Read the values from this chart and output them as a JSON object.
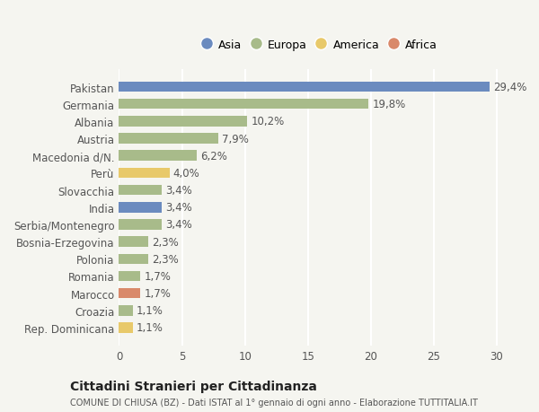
{
  "categories": [
    "Pakistan",
    "Germania",
    "Albania",
    "Austria",
    "Macedonia d/N.",
    "Perù",
    "Slovacchia",
    "India",
    "Serbia/Montenegro",
    "Bosnia-Erzegovina",
    "Polonia",
    "Romania",
    "Marocco",
    "Croazia",
    "Rep. Dominicana"
  ],
  "values": [
    29.4,
    19.8,
    10.2,
    7.9,
    6.2,
    4.0,
    3.4,
    3.4,
    3.4,
    2.3,
    2.3,
    1.7,
    1.7,
    1.1,
    1.1
  ],
  "labels": [
    "29,4%",
    "19,8%",
    "10,2%",
    "7,9%",
    "6,2%",
    "4,0%",
    "3,4%",
    "3,4%",
    "3,4%",
    "2,3%",
    "2,3%",
    "1,7%",
    "1,7%",
    "1,1%",
    "1,1%"
  ],
  "continents": [
    "Asia",
    "Europa",
    "Europa",
    "Europa",
    "Europa",
    "America",
    "Europa",
    "Asia",
    "Europa",
    "Europa",
    "Europa",
    "Europa",
    "Africa",
    "Europa",
    "America"
  ],
  "colors": {
    "Asia": "#6b8bbf",
    "Europa": "#a8bb8a",
    "America": "#e8c96a",
    "Africa": "#d9896a"
  },
  "legend_order": [
    "Asia",
    "Europa",
    "America",
    "Africa"
  ],
  "title": "Cittadini Stranieri per Cittadinanza",
  "subtitle": "COMUNE DI CHIUSA (BZ) - Dati ISTAT al 1° gennaio di ogni anno - Elaborazione TUTTITALIA.IT",
  "xlim": [
    0,
    32
  ],
  "background_color": "#f5f5f0",
  "grid_color": "#ffffff",
  "tick_positions": [
    0,
    5,
    10,
    15,
    20,
    25,
    30
  ]
}
